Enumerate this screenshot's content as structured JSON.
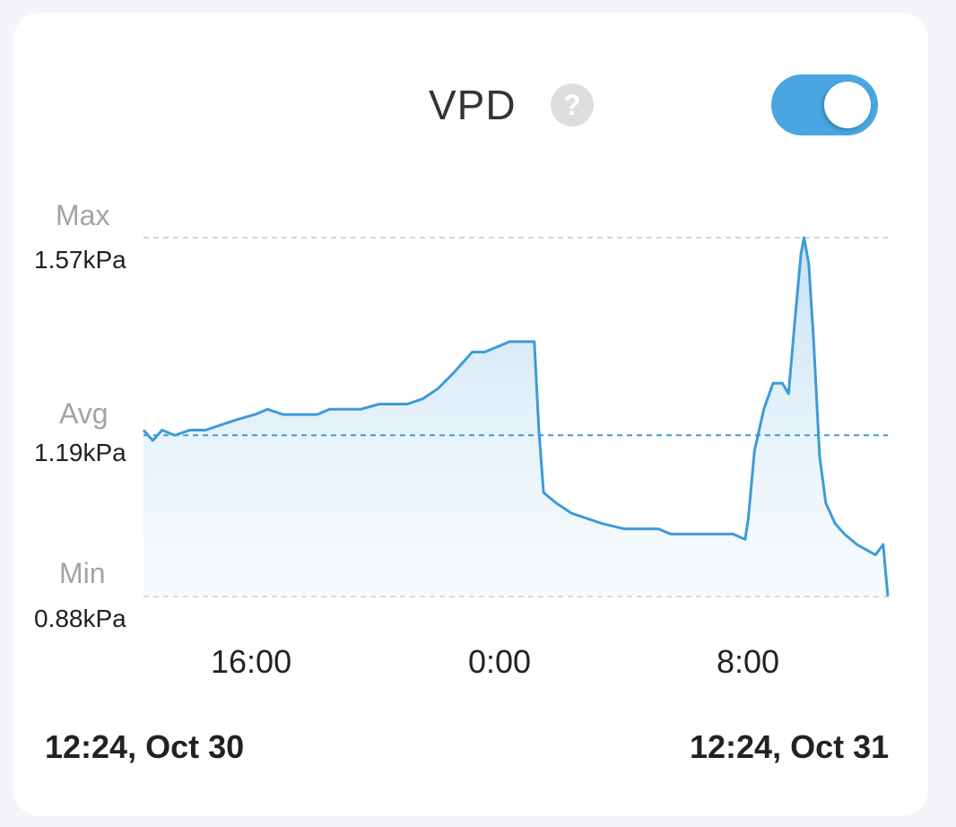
{
  "header": {
    "title": "VPD",
    "help_icon": "?",
    "toggle_on": true
  },
  "colors": {
    "accent": "#4aa6e0",
    "line": "#3d9bd8",
    "fill": "#cfe6f5"
  },
  "chart_data": {
    "type": "area",
    "title": "VPD",
    "ylim": [
      0.88,
      1.57
    ],
    "y_unit": "kPa",
    "reference_lines": {
      "max": {
        "label": "Max",
        "value_text": "1.57kPa",
        "value": 1.57
      },
      "avg": {
        "label": "Avg",
        "value_text": "1.19kPa",
        "value": 1.19
      },
      "min": {
        "label": "Min",
        "value_text": "0.88kPa",
        "value": 0.88
      }
    },
    "x_ticks": [
      {
        "label": "16:00",
        "hour": 3.6
      },
      {
        "label": "0:00",
        "hour": 11.6
      },
      {
        "label": "8:00",
        "hour": 19.6
      }
    ],
    "x_range_hours": [
      0,
      24
    ],
    "start_label": "12:24, Oct 30",
    "end_label": "12:24, Oct 31",
    "series": [
      {
        "values": [
          [
            0.0,
            1.2
          ],
          [
            0.3,
            1.18
          ],
          [
            0.6,
            1.2
          ],
          [
            1.0,
            1.19
          ],
          [
            1.5,
            1.2
          ],
          [
            2.0,
            1.2
          ],
          [
            2.5,
            1.21
          ],
          [
            3.0,
            1.22
          ],
          [
            3.6,
            1.23
          ],
          [
            4.0,
            1.24
          ],
          [
            4.5,
            1.23
          ],
          [
            5.0,
            1.23
          ],
          [
            5.6,
            1.23
          ],
          [
            6.0,
            1.24
          ],
          [
            6.5,
            1.24
          ],
          [
            7.0,
            1.24
          ],
          [
            7.6,
            1.25
          ],
          [
            8.0,
            1.25
          ],
          [
            8.5,
            1.25
          ],
          [
            9.0,
            1.26
          ],
          [
            9.5,
            1.28
          ],
          [
            10.0,
            1.31
          ],
          [
            10.3,
            1.33
          ],
          [
            10.6,
            1.35
          ],
          [
            11.0,
            1.35
          ],
          [
            11.4,
            1.36
          ],
          [
            11.8,
            1.37
          ],
          [
            12.6,
            1.37
          ],
          [
            12.75,
            1.2
          ],
          [
            12.9,
            1.08
          ],
          [
            13.3,
            1.06
          ],
          [
            13.8,
            1.04
          ],
          [
            14.3,
            1.03
          ],
          [
            14.8,
            1.02
          ],
          [
            15.5,
            1.01
          ],
          [
            16.0,
            1.01
          ],
          [
            16.6,
            1.01
          ],
          [
            17.0,
            1.0
          ],
          [
            17.5,
            1.0
          ],
          [
            18.0,
            1.0
          ],
          [
            19.0,
            1.0
          ],
          [
            19.4,
            0.99
          ],
          [
            19.5,
            1.03
          ],
          [
            19.7,
            1.16
          ],
          [
            20.0,
            1.24
          ],
          [
            20.3,
            1.29
          ],
          [
            20.6,
            1.29
          ],
          [
            20.8,
            1.27
          ],
          [
            21.0,
            1.41
          ],
          [
            21.2,
            1.54
          ],
          [
            21.3,
            1.57
          ],
          [
            21.45,
            1.52
          ],
          [
            21.6,
            1.38
          ],
          [
            21.8,
            1.15
          ],
          [
            22.0,
            1.06
          ],
          [
            22.3,
            1.02
          ],
          [
            22.6,
            1.0
          ],
          [
            23.0,
            0.98
          ],
          [
            23.3,
            0.97
          ],
          [
            23.6,
            0.96
          ],
          [
            23.85,
            0.98
          ],
          [
            24.0,
            0.88
          ]
        ]
      }
    ]
  }
}
